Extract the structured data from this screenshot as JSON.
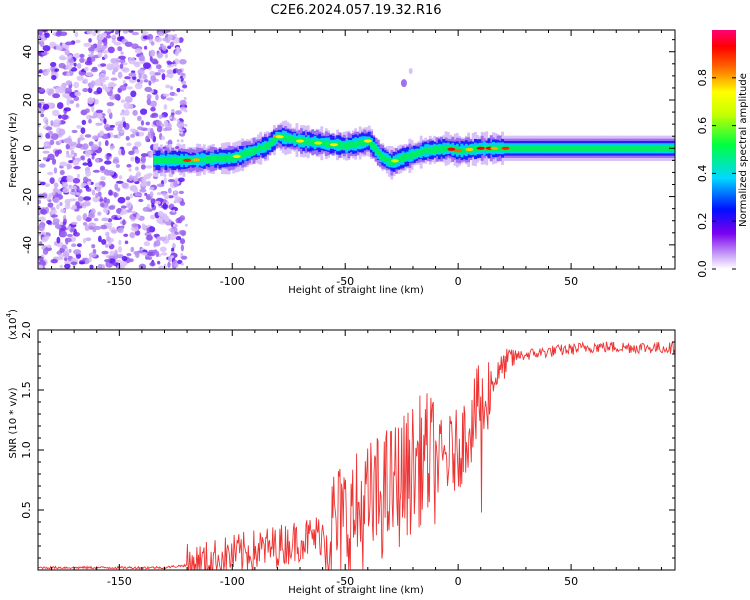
{
  "title": "C2E6.2024.057.19.32.R16",
  "chart_data": [
    {
      "type": "heatmap",
      "xlabel": "Height of straight line (km)",
      "ylabel": "Frequency (Hz)",
      "xlim": [
        -186,
        96
      ],
      "ylim": [
        -50,
        49
      ],
      "x_ticks": [
        -150,
        -100,
        -50,
        0,
        50
      ],
      "y_ticks": [
        -40,
        -20,
        0,
        20,
        40
      ],
      "colorbar": {
        "label": "Normalized spectral amplitude",
        "range": [
          0,
          1
        ],
        "ticks": [
          0.0,
          0.2,
          0.4,
          0.6,
          0.8
        ],
        "colormap": "white-purple-blue-cyan-green-yellow-red-magenta"
      },
      "features": {
        "noise_region_x": [
          -186,
          -123
        ],
        "signal_start_x": -135,
        "signal_center_freq": [
          [
            -135,
            -5
          ],
          [
            -120,
            -5
          ],
          [
            -100,
            -4
          ],
          [
            -85,
            1
          ],
          [
            -80,
            5
          ],
          [
            -70,
            3
          ],
          [
            -60,
            2
          ],
          [
            -50,
            1
          ],
          [
            -40,
            3
          ],
          [
            -35,
            -3
          ],
          [
            -30,
            -6
          ],
          [
            -25,
            -4
          ],
          [
            -15,
            -1
          ],
          [
            -5,
            0
          ],
          [
            0,
            -1
          ],
          [
            10,
            0
          ],
          [
            20,
            0
          ],
          [
            50,
            0
          ],
          [
            96,
            0
          ]
        ]
      }
    },
    {
      "type": "line",
      "xlabel": "Height of straight line (km)",
      "ylabel": "SNR (10 * v/v)",
      "y_multiplier": "(x10",
      "y_exponent": "4",
      "xlim": [
        -186,
        96
      ],
      "ylim": [
        0,
        2.0
      ],
      "x_ticks": [
        -150,
        -100,
        -50,
        0,
        50
      ],
      "y_ticks": [
        0.5,
        1.0,
        1.5,
        2.0
      ],
      "series": [
        {
          "color": "#ee3333",
          "trend": [
            [
              -186,
              0.02
            ],
            [
              -130,
              0.02
            ],
            [
              -115,
              0.05
            ],
            [
              -100,
              0.12
            ],
            [
              -80,
              0.2
            ],
            [
              -60,
              0.3
            ],
            [
              -45,
              0.45
            ],
            [
              -35,
              0.6
            ],
            [
              -25,
              0.75
            ],
            [
              -15,
              0.95
            ],
            [
              -8,
              0.9
            ],
            [
              0,
              1.0
            ],
            [
              5,
              1.2
            ],
            [
              10,
              1.4
            ],
            [
              15,
              1.55
            ],
            [
              20,
              1.7
            ],
            [
              25,
              1.78
            ],
            [
              40,
              1.82
            ],
            [
              60,
              1.86
            ],
            [
              96,
              1.85
            ]
          ]
        }
      ]
    }
  ]
}
